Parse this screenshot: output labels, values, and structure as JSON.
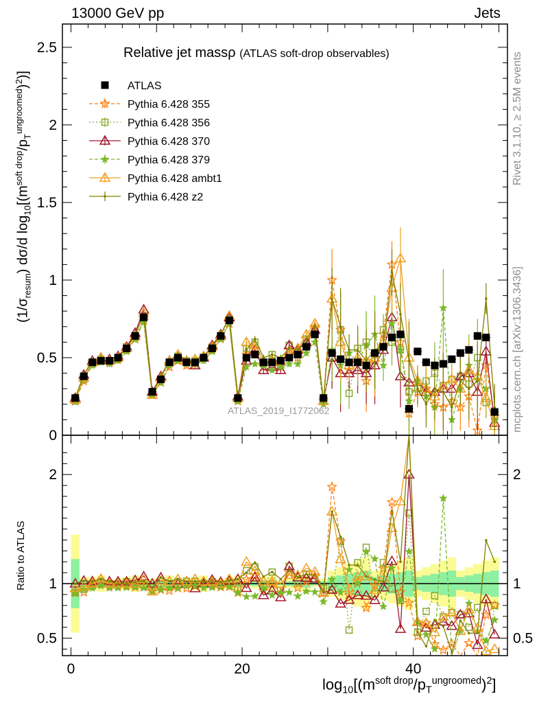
{
  "header": {
    "left": "13000 GeV pp",
    "right": "Jets",
    "title": "Relative jet massρ",
    "title_sub": "(ATLAS soft-drop observables)",
    "watermark": "ATLAS_2019_I1772062",
    "side_rivet": "Rivet 3.1.10, ≥ 2.5M events",
    "side_mcplots": "mcplots.cern.ch [arXiv:1306.3436]"
  },
  "axis_text": {
    "ylabel_main_pre": "(1/σ",
    "ylabel_main_sub": "resum",
    "ylabel_main_mid": ") dσ/d log",
    "ylabel_main_sub2": "10",
    "ylabel_main_post": "[(m",
    "ylabel_main_sup": "soft drop",
    "ylabel_main_slash": "/p",
    "ylabel_main_sub3": "T",
    "ylabel_main_sup2": "ungroomed",
    "ylabel_main_end": ")",
    "ylabel_main_sup3": "2",
    "ylabel_main_close": ")]",
    "ylabel_ratio": "Ratio to ATLAS",
    "xlabel_pre": "log",
    "xlabel_sub": "10",
    "xlabel_mid": "[(m",
    "xlabel_sup": "soft drop",
    "xlabel_slash": "/p",
    "xlabel_sub2": "T",
    "xlabel_sup2": "ungroomed",
    "xlabel_end": ")",
    "xlabel_sup3": "2",
    "xlabel_close": "]"
  },
  "chart_data": {
    "type": "scatter",
    "x": [
      0.5,
      1.5,
      2.5,
      3.5,
      4.5,
      5.5,
      6.5,
      7.5,
      8.5,
      9.5,
      10.5,
      11.5,
      12.5,
      13.5,
      14.5,
      15.5,
      16.5,
      17.5,
      18.5,
      19.5,
      20.5,
      21.5,
      22.5,
      23.5,
      24.5,
      25.5,
      26.5,
      27.5,
      28.5,
      29.5,
      30.5,
      31.5,
      32.5,
      33.5,
      34.5,
      35.5,
      36.5,
      37.5,
      38.5,
      39.5,
      40.5,
      41.5,
      42.5,
      43.5,
      44.5,
      45.5,
      46.5,
      47.5,
      48.5,
      49.5
    ],
    "xlim": [
      -1,
      51
    ],
    "main_ylim": [
      0,
      2.65
    ],
    "main_yticks": [
      "0",
      "0.5",
      "1",
      "1.5",
      "2",
      "2.5"
    ],
    "ratio_ylim": [
      0.34,
      2.36
    ],
    "ratio_yticks": [
      "0.5",
      "1",
      "2"
    ],
    "xticks": [
      "0",
      "20",
      "40"
    ],
    "legend_position": "top-left",
    "data": {
      "name": "ATLAS",
      "color": "#000000",
      "y": [
        0.24,
        0.38,
        0.47,
        0.48,
        0.48,
        0.5,
        0.56,
        0.64,
        0.76,
        0.28,
        0.36,
        0.47,
        0.5,
        0.47,
        0.47,
        0.5,
        0.56,
        0.64,
        0.74,
        0.24,
        0.5,
        0.52,
        0.47,
        0.47,
        0.48,
        0.5,
        0.52,
        0.57,
        0.65,
        0.24,
        0.53,
        0.49,
        0.47,
        0.47,
        0.45,
        0.53,
        0.57,
        0.63,
        0.65,
        0.17,
        0.54,
        0.47,
        0.45,
        0.46,
        0.49,
        0.53,
        0.55,
        0.64,
        0.63,
        0.15
      ]
    },
    "series": [
      {
        "name": "Pythia 6.428 355",
        "color": "#ff7f0e",
        "marker": "star-open",
        "dash": "5,3",
        "y": [
          0.22,
          0.35,
          0.47,
          0.48,
          0.47,
          0.49,
          0.55,
          0.62,
          0.74,
          0.26,
          0.34,
          0.44,
          0.48,
          0.45,
          0.46,
          0.5,
          0.55,
          0.62,
          0.72,
          0.22,
          0.52,
          0.56,
          0.44,
          0.47,
          0.44,
          0.55,
          0.5,
          0.58,
          0.7,
          0.22,
          1.0,
          0.68,
          0.42,
          0.48,
          0.35,
          0.52,
          0.65,
          1.1,
          0.6,
          0.14,
          0.28,
          0.3,
          0.2,
          0.18,
          0.22,
          0.18,
          0.25,
          0.03,
          0.45,
          0.12
        ]
      },
      {
        "name": "Pythia 6.428 356",
        "color": "#8ca832",
        "marker": "square-open",
        "dash": "2,3",
        "y": [
          0.22,
          0.36,
          0.46,
          0.49,
          0.48,
          0.5,
          0.57,
          0.63,
          0.75,
          0.27,
          0.36,
          0.47,
          0.51,
          0.48,
          0.48,
          0.5,
          0.57,
          0.63,
          0.75,
          0.23,
          0.56,
          0.6,
          0.46,
          0.52,
          0.45,
          0.58,
          0.53,
          0.62,
          0.68,
          0.23,
          0.5,
          0.68,
          0.27,
          0.56,
          0.6,
          0.48,
          0.68,
          0.6,
          0.55,
          0.28,
          0.3,
          0.35,
          0.4,
          0.32,
          0.36,
          0.38,
          0.33,
          0.5,
          0.21,
          0.12
        ]
      },
      {
        "name": "Pythia 6.428 370",
        "color": "#a0162b",
        "marker": "triangle-open",
        "dash": "",
        "y": [
          0.24,
          0.39,
          0.48,
          0.5,
          0.49,
          0.51,
          0.57,
          0.66,
          0.81,
          0.28,
          0.38,
          0.48,
          0.5,
          0.48,
          0.45,
          0.5,
          0.58,
          0.65,
          0.76,
          0.25,
          0.48,
          0.55,
          0.42,
          0.44,
          0.42,
          0.58,
          0.55,
          0.6,
          0.68,
          0.22,
          0.5,
          0.4,
          0.4,
          0.42,
          0.4,
          0.45,
          0.55,
          0.76,
          0.38,
          0.34,
          0.35,
          0.28,
          0.28,
          0.3,
          0.3,
          0.38,
          0.4,
          0.28,
          0.54,
          0.08
        ]
      },
      {
        "name": "Pythia 6.428 379",
        "color": "#7ab929",
        "marker": "star",
        "dash": "5,3",
        "y": [
          0.22,
          0.36,
          0.45,
          0.47,
          0.46,
          0.48,
          0.54,
          0.62,
          0.73,
          0.26,
          0.34,
          0.45,
          0.48,
          0.46,
          0.46,
          0.48,
          0.54,
          0.62,
          0.72,
          0.22,
          0.44,
          0.46,
          0.45,
          0.42,
          0.44,
          0.46,
          0.46,
          0.53,
          0.6,
          0.2,
          0.55,
          0.45,
          0.53,
          0.47,
          0.58,
          0.65,
          0.45,
          0.72,
          0.55,
          0.22,
          0.35,
          0.25,
          0.18,
          0.82,
          0.1,
          0.3,
          0.45,
          0.36,
          0.3,
          0.1
        ]
      },
      {
        "name": "Pythia 6.428 ambt1",
        "color": "#f0a020",
        "marker": "triangle-open",
        "dash": "",
        "y": [
          0.23,
          0.37,
          0.47,
          0.5,
          0.48,
          0.5,
          0.56,
          0.64,
          0.79,
          0.26,
          0.37,
          0.48,
          0.52,
          0.48,
          0.49,
          0.51,
          0.57,
          0.64,
          0.77,
          0.24,
          0.6,
          0.58,
          0.48,
          0.48,
          0.48,
          0.54,
          0.56,
          0.65,
          0.72,
          0.22,
          0.88,
          0.6,
          0.45,
          0.5,
          0.48,
          0.5,
          0.6,
          0.95,
          1.14,
          0.5,
          0.35,
          0.3,
          0.25,
          0.32,
          0.36,
          0.3,
          0.42,
          0.38,
          0.24,
          0.06
        ]
      },
      {
        "name": "Pythia 6.428 z2",
        "color": "#808000",
        "marker": "dot",
        "dash": "",
        "y": [
          0.24,
          0.39,
          0.48,
          0.5,
          0.49,
          0.5,
          0.56,
          0.65,
          0.78,
          0.27,
          0.38,
          0.48,
          0.52,
          0.48,
          0.48,
          0.51,
          0.57,
          0.65,
          0.76,
          0.25,
          0.55,
          0.62,
          0.5,
          0.52,
          0.5,
          0.56,
          0.55,
          0.62,
          0.7,
          0.22,
          0.88,
          0.7,
          0.55,
          0.55,
          0.48,
          0.55,
          0.58,
          1.05,
          0.78,
          0.48,
          0.3,
          0.2,
          0.3,
          0.28,
          0.18,
          0.35,
          0.3,
          0.35,
          0.88,
          0.18
        ]
      }
    ]
  }
}
